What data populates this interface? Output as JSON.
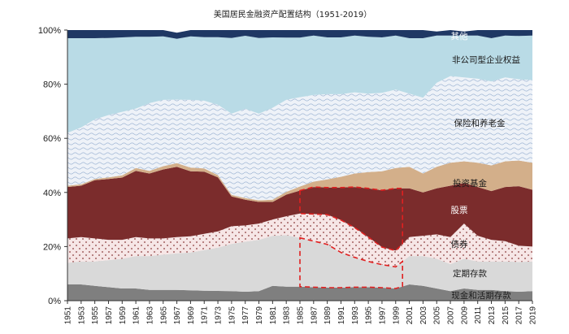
{
  "chart_data": {
    "type": "area",
    "title": "美国居民金融资产配置结构（1951-2019）",
    "xlabel": "",
    "ylabel": "",
    "ylim": [
      0,
      100
    ],
    "y_ticks": [
      "0%",
      "20%",
      "40%",
      "60%",
      "80%",
      "100%"
    ],
    "x_tick_labels": [
      "1951",
      "1953",
      "1955",
      "1957",
      "1959",
      "1961",
      "1963",
      "1965",
      "1967",
      "1969",
      "1971",
      "1973",
      "1975",
      "1977",
      "1979",
      "1981",
      "1983",
      "1985",
      "1987",
      "1989",
      "1991",
      "1993",
      "1995",
      "1997",
      "1999",
      "2001",
      "2003",
      "2005",
      "2007",
      "2009",
      "2011",
      "2013",
      "2015",
      "2017",
      "2019"
    ],
    "x": [
      1951,
      1953,
      1955,
      1957,
      1959,
      1961,
      1963,
      1965,
      1967,
      1969,
      1971,
      1973,
      1975,
      1977,
      1979,
      1981,
      1983,
      1985,
      1987,
      1989,
      1991,
      1993,
      1995,
      1997,
      1999,
      2001,
      2003,
      2005,
      2007,
      2009,
      2011,
      2013,
      2015,
      2017,
      2019
    ],
    "stacking": "cumulative_percent",
    "series": [
      {
        "name": "现金和活期存款",
        "color": "#7f7f7f",
        "pattern": "solid",
        "values": [
          6,
          6,
          5.5,
          5,
          4.5,
          4.5,
          4,
          4,
          4,
          3.8,
          3.7,
          3.6,
          3.5,
          3.3,
          3.5,
          5.5,
          5.2,
          5.2,
          5,
          4.8,
          4.8,
          5,
          5,
          4.8,
          4.5,
          6,
          5.5,
          4.5,
          3.5,
          4.5,
          4,
          4,
          3.5,
          3.3,
          3.5
        ]
      },
      {
        "name": "定期存款",
        "color": "#d9d9d9",
        "pattern": "solid",
        "values": [
          8,
          8.5,
          9,
          10,
          11,
          12,
          12.5,
          13,
          13.5,
          14,
          15,
          16,
          17.5,
          18.5,
          19,
          18.5,
          19,
          18,
          17,
          16,
          13,
          11,
          9.5,
          8.5,
          8,
          10.5,
          11,
          11,
          10,
          11,
          10.5,
          10.5,
          11,
          11,
          11
        ]
      },
      {
        "name": "债券",
        "color": "#f6e6e6",
        "pattern": "dots",
        "values": [
          9,
          9,
          8.5,
          7.5,
          7,
          7,
          6.5,
          6,
          6,
          6,
          6,
          6,
          6.5,
          6,
          6,
          6,
          7,
          9,
          10,
          11,
          12,
          11,
          9,
          6.5,
          6,
          7,
          7.5,
          9,
          10,
          13,
          9.5,
          8,
          7.5,
          6,
          5.5
        ]
      },
      {
        "name": "股票",
        "color": "#7b2c2c",
        "pattern": "solid",
        "values": [
          19,
          19,
          21.5,
          22.5,
          23,
          24.5,
          24,
          25.5,
          26,
          24,
          23,
          20,
          11,
          9.5,
          8,
          6.5,
          8,
          8.5,
          10,
          10,
          12,
          15,
          18,
          21,
          23,
          18,
          16,
          17,
          19,
          15,
          18,
          18,
          20,
          22,
          21
        ]
      },
      {
        "name": "投资基金",
        "color": "#d3af8a",
        "pattern": "solid",
        "values": [
          0.5,
          0.5,
          0.5,
          0.6,
          0.8,
          1,
          1,
          1.2,
          1.3,
          1.4,
          1.2,
          0.8,
          0.6,
          0.6,
          0.6,
          0.8,
          1,
          1.5,
          2,
          3,
          4,
          5,
          6,
          7,
          7.5,
          8,
          7,
          8,
          8.5,
          8,
          9,
          9.5,
          9.5,
          9.5,
          10
        ]
      },
      {
        "name": "保险和养老金",
        "color": "#eef2f8",
        "pattern": "waves",
        "values": [
          19.5,
          21,
          22,
          23,
          23.5,
          22,
          25,
          24.5,
          23.5,
          25,
          25,
          26,
          30,
          33,
          32,
          34,
          34,
          33,
          32,
          31.5,
          30.5,
          30,
          29,
          29,
          29,
          27,
          28,
          31,
          32,
          31,
          31,
          31,
          31,
          30,
          30.5
        ]
      },
      {
        "name": "非公司型企业权益",
        "color": "#b9dbe6",
        "pattern": "solid",
        "values": [
          35,
          33,
          30,
          28.5,
          27.5,
          26.5,
          24.5,
          23.5,
          22.5,
          23.5,
          23.5,
          25,
          28,
          27,
          28,
          26,
          23,
          22,
          22,
          21,
          21,
          21,
          21,
          20.5,
          20,
          20.5,
          22,
          17.5,
          15,
          15.5,
          16,
          16,
          15.5,
          16,
          16.5
        ]
      },
      {
        "name": "其他",
        "color": "#1f3864",
        "pattern": "solid",
        "values": [
          3,
          3,
          3,
          2.9,
          2.7,
          2.5,
          2.5,
          2.3,
          2.2,
          2.3,
          2.6,
          2.6,
          2.9,
          2.1,
          2.9,
          2.7,
          2.8,
          2.8,
          2,
          2.7,
          2.7,
          2,
          2.5,
          2.7,
          2,
          3,
          3,
          1.5,
          2,
          1.5,
          2,
          3,
          2,
          2.2,
          2
        ]
      }
    ],
    "annotations": [
      {
        "type": "dashed_box",
        "series": "股票",
        "x_from": 1985,
        "x_to": 2000,
        "color": "#e02020"
      },
      {
        "type": "dashed_box",
        "series": "定期存款",
        "x_from": 1985,
        "x_to": 2000,
        "color": "#e02020"
      }
    ],
    "grid": false,
    "legend": "inline"
  }
}
